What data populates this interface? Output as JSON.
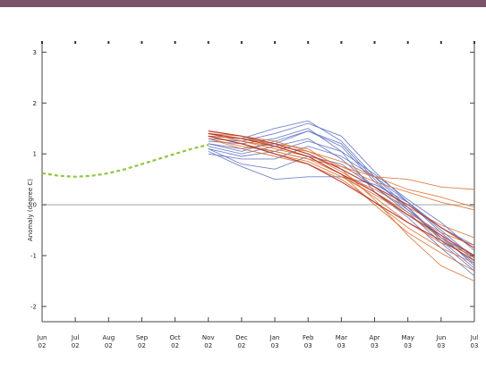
{
  "colors": {
    "header_bar": "#7b5368",
    "observed": "#8ec63f",
    "ensemble_blue": "#5b6fc0",
    "ensemble_orange": "#d86a2a",
    "ensemble_red": "#b0302a",
    "zero_line": "#b5b5b5",
    "frame": "#444444"
  },
  "chart_data": {
    "type": "line",
    "ylabel": "Anomaly (degree C)",
    "xlabel": "",
    "ylim": [
      -2.3,
      3.2
    ],
    "grid": false,
    "y_ticks": [
      {
        "value": 3,
        "label": "3"
      },
      {
        "value": 2,
        "label": "2"
      },
      {
        "value": 1,
        "label": "1"
      },
      {
        "value": 0,
        "label": "0"
      },
      {
        "value": -1,
        "label": "-1"
      },
      {
        "value": -2,
        "label": "-2"
      }
    ],
    "x_ticks": [
      {
        "m": "Jun",
        "y": "02"
      },
      {
        "m": "Jul",
        "y": "02"
      },
      {
        "m": "Aug",
        "y": "02"
      },
      {
        "m": "Sep",
        "y": "02"
      },
      {
        "m": "Oct",
        "y": "02"
      },
      {
        "m": "Nov",
        "y": "02"
      },
      {
        "m": "Dec",
        "y": "02"
      },
      {
        "m": "Jan",
        "y": "03"
      },
      {
        "m": "Feb",
        "y": "03"
      },
      {
        "m": "Mar",
        "y": "03"
      },
      {
        "m": "Apr",
        "y": "03"
      },
      {
        "m": "May",
        "y": "03"
      },
      {
        "m": "Jun",
        "y": "03"
      },
      {
        "m": "Jul",
        "y": "03"
      }
    ],
    "observed": {
      "x": [
        0,
        0.5,
        1,
        1.5,
        2,
        2.5,
        3,
        3.5,
        4,
        4.5,
        5
      ],
      "y": [
        0.62,
        0.57,
        0.55,
        0.57,
        0.62,
        0.7,
        0.8,
        0.9,
        1.0,
        1.1,
        1.18
      ]
    },
    "ensemble": {
      "x": [
        5,
        6,
        7,
        8,
        9,
        10,
        11,
        12,
        13
      ],
      "blue": [
        [
          1.0,
          0.9,
          0.9,
          1.15,
          0.95,
          0.55,
          0.05,
          -0.5,
          -1.05
        ],
        [
          1.2,
          1.1,
          1.2,
          1.45,
          1.15,
          0.45,
          -0.05,
          -0.7,
          -1.25
        ],
        [
          1.3,
          1.25,
          1.4,
          1.6,
          1.35,
          0.65,
          0.05,
          -0.55,
          -1.1
        ],
        [
          1.1,
          0.8,
          0.7,
          0.95,
          0.8,
          0.35,
          -0.1,
          -0.65,
          -1.0
        ],
        [
          1.05,
          0.75,
          0.5,
          0.55,
          0.55,
          0.4,
          0.05,
          -0.45,
          -0.8
        ],
        [
          1.25,
          1.2,
          1.3,
          1.5,
          1.05,
          0.25,
          -0.25,
          -0.85,
          -1.4
        ],
        [
          1.15,
          1.0,
          1.15,
          1.3,
          0.9,
          0.35,
          -0.15,
          -0.75,
          -1.3
        ],
        [
          1.35,
          1.3,
          1.5,
          1.65,
          1.25,
          0.55,
          -0.05,
          -0.65,
          -1.15
        ],
        [
          1.1,
          0.95,
          1.05,
          1.25,
          1.05,
          0.6,
          0.1,
          -0.35,
          -0.9
        ],
        [
          1.2,
          1.05,
          1.25,
          1.45,
          1.2,
          0.5,
          -0.1,
          -0.6,
          -1.2
        ]
      ],
      "orange": [
        [
          1.4,
          1.3,
          1.2,
          1.1,
          0.7,
          0.1,
          -0.6,
          -1.2,
          -1.5
        ],
        [
          1.35,
          1.2,
          1.0,
          0.85,
          0.55,
          0.2,
          -0.2,
          -0.65,
          -1.05
        ],
        [
          1.4,
          1.35,
          1.25,
          1.05,
          0.75,
          0.45,
          0.25,
          0.05,
          -0.1
        ],
        [
          1.3,
          1.15,
          1.05,
          0.9,
          0.75,
          0.55,
          0.5,
          0.35,
          0.3
        ],
        [
          1.4,
          1.25,
          1.1,
          0.95,
          0.6,
          0.15,
          -0.35,
          -0.75,
          -1.0
        ],
        [
          1.35,
          1.3,
          1.2,
          1.0,
          0.65,
          0.25,
          -0.15,
          -0.55,
          -0.8
        ],
        [
          1.45,
          1.35,
          1.15,
          0.95,
          0.6,
          0.0,
          -0.55,
          -0.95,
          -1.3
        ],
        [
          1.3,
          1.1,
          0.95,
          0.8,
          0.5,
          0.05,
          -0.45,
          -0.85,
          -1.15
        ],
        [
          1.4,
          1.25,
          1.15,
          1.05,
          0.85,
          0.55,
          0.3,
          0.15,
          -0.05
        ],
        [
          1.35,
          1.2,
          1.05,
          0.9,
          0.6,
          0.3,
          -0.05,
          -0.4,
          -0.65
        ]
      ],
      "red": [
        [
          1.4,
          1.3,
          1.15,
          0.95,
          0.6,
          0.25,
          -0.2,
          -0.6,
          -1.0
        ],
        [
          1.45,
          1.35,
          1.2,
          1.0,
          0.7,
          0.35,
          0.0,
          -0.45,
          -0.85
        ],
        [
          1.35,
          1.2,
          1.0,
          0.8,
          0.45,
          0.05,
          -0.35,
          -0.7,
          -1.1
        ]
      ]
    }
  }
}
